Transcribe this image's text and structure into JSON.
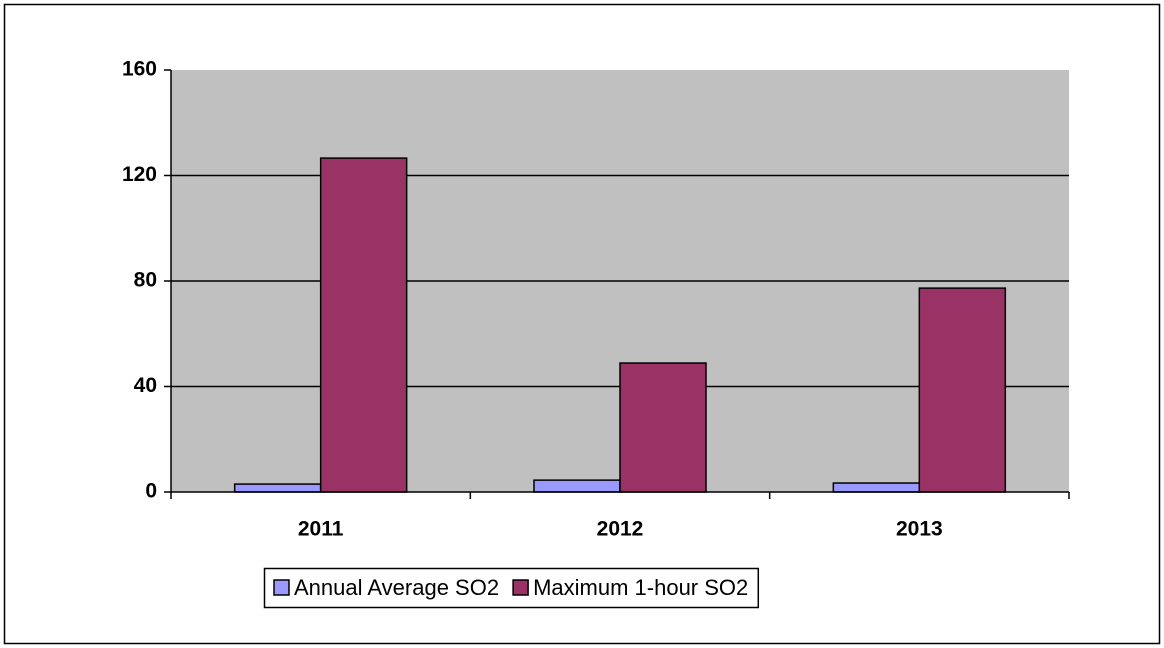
{
  "chart_data": {
    "type": "bar",
    "categories": [
      "2011",
      "2012",
      "2013"
    ],
    "series": [
      {
        "name": "Annual Average SO2",
        "color": "#9999ff",
        "values": [
          3,
          4.5,
          3.4
        ]
      },
      {
        "name": "Maximum 1-hour SO2",
        "color": "#993366",
        "values": [
          126.6,
          48.9,
          77.3
        ]
      }
    ],
    "ylim": [
      0,
      160
    ],
    "yticks": [
      0,
      40,
      80,
      120,
      160
    ],
    "grid": true,
    "plot_background": "#c0c0c0",
    "legend": "bottom"
  }
}
